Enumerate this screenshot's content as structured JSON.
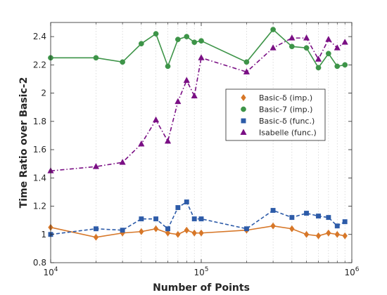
{
  "chart_data": {
    "type": "line",
    "xlabel": "Number of Points",
    "ylabel": "Time Ratio over Basic-2",
    "xscale": "log",
    "xlim": [
      10000,
      1000000
    ],
    "ylim": [
      0.8,
      2.5
    ],
    "grid": "dotted-vertical",
    "legend_position": "right",
    "x_ticks": [
      {
        "value": 10000,
        "base": "10",
        "exp": "4"
      },
      {
        "value": 100000,
        "base": "10",
        "exp": "5"
      },
      {
        "value": 1000000,
        "base": "10",
        "exp": "6"
      }
    ],
    "y_ticks": [
      {
        "value": 0.8,
        "label": "0.8"
      },
      {
        "value": 1.0,
        "label": "1"
      },
      {
        "value": 1.2,
        "label": "1.2"
      },
      {
        "value": 1.4,
        "label": "1.4"
      },
      {
        "value": 1.6,
        "label": "1.6"
      },
      {
        "value": 1.8,
        "label": "1.8"
      },
      {
        "value": 2.0,
        "label": "2"
      },
      {
        "value": 2.2,
        "label": "2.2"
      },
      {
        "value": 2.4,
        "label": "2.4"
      }
    ],
    "x": [
      10000,
      20000,
      30000,
      40000,
      50000,
      60000,
      70000,
      80000,
      90000,
      100000,
      200000,
      300000,
      400000,
      500000,
      600000,
      700000,
      800000,
      900000
    ],
    "series": [
      {
        "name": "Basic-δ (imp.)",
        "color": "#d77728",
        "marker": "diamond",
        "dash": "solid",
        "values": [
          1.05,
          0.98,
          1.01,
          1.02,
          1.04,
          1.01,
          1.0,
          1.03,
          1.01,
          1.01,
          1.03,
          1.06,
          1.04,
          1.0,
          0.99,
          1.01,
          1.0,
          0.99
        ]
      },
      {
        "name": "Basic-7 (imp.)",
        "color": "#3d9448",
        "marker": "circle",
        "dash": "solid",
        "values": [
          2.25,
          2.25,
          2.22,
          2.35,
          2.42,
          2.19,
          2.38,
          2.4,
          2.36,
          2.37,
          2.22,
          2.45,
          2.33,
          2.32,
          2.18,
          2.28,
          2.19,
          2.2
        ]
      },
      {
        "name": "Basic-δ (func.)",
        "color": "#2d5ba8",
        "marker": "square",
        "dash": "dashed",
        "values": [
          1.0,
          1.04,
          1.03,
          1.11,
          1.11,
          1.04,
          1.19,
          1.23,
          1.11,
          1.11,
          1.04,
          1.17,
          1.12,
          1.15,
          1.13,
          1.12,
          1.06,
          1.09
        ]
      },
      {
        "name": "Isabelle (func.)",
        "color": "#7a0f84",
        "marker": "triangle",
        "dash": "dashdot",
        "values": [
          1.45,
          1.48,
          1.51,
          1.64,
          1.81,
          1.66,
          1.94,
          2.09,
          1.98,
          2.25,
          2.15,
          2.32,
          2.39,
          2.39,
          2.24,
          2.38,
          2.32,
          2.36
        ]
      }
    ]
  }
}
